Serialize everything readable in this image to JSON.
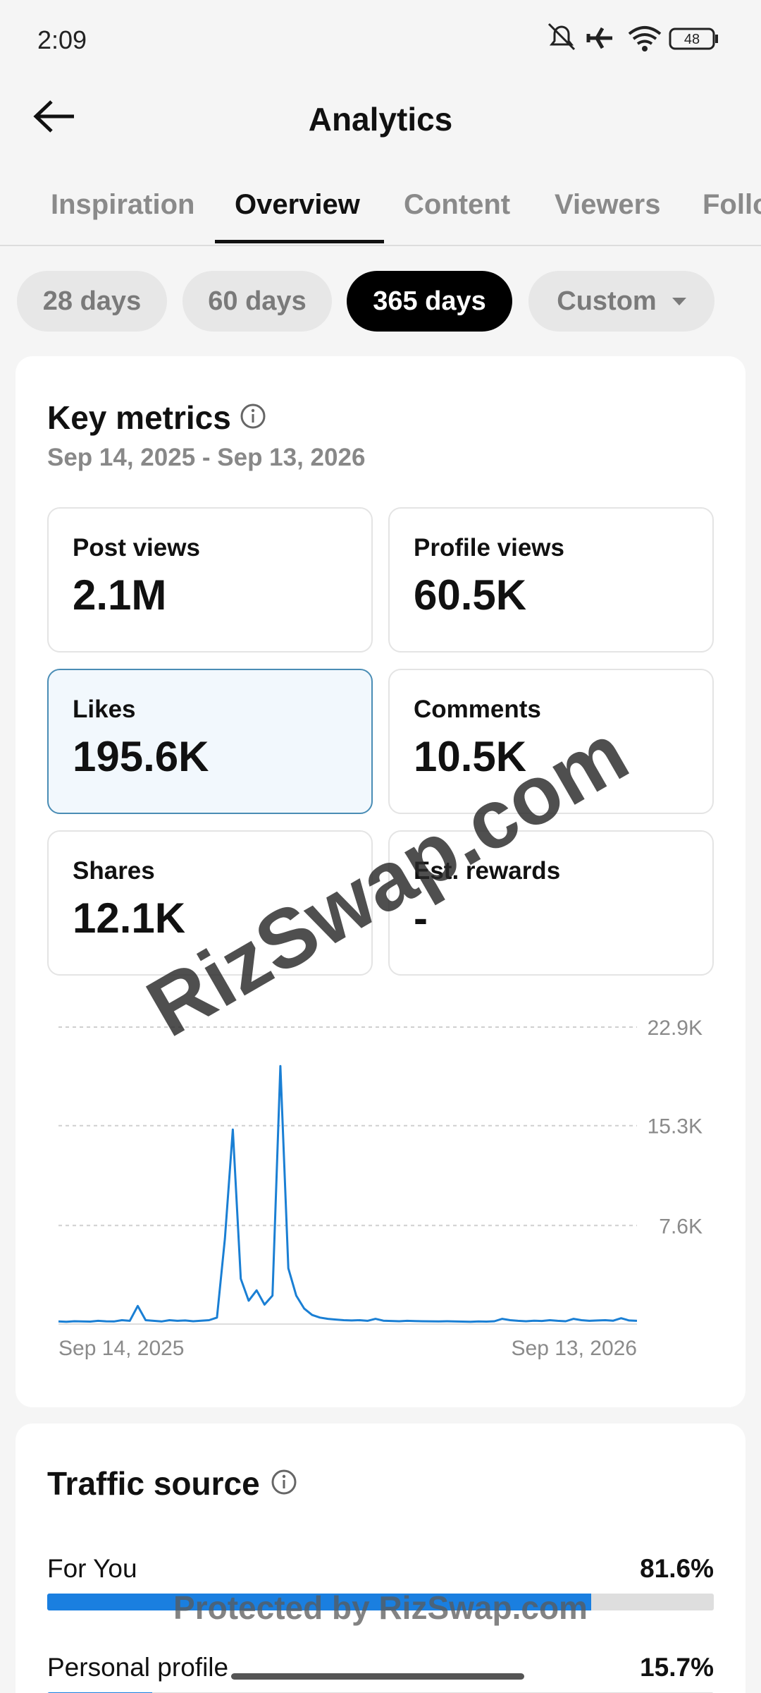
{
  "status_bar": {
    "time": "2:09",
    "battery": "48"
  },
  "header": {
    "title": "Analytics"
  },
  "tabs": [
    "Inspiration",
    "Overview",
    "Content",
    "Viewers",
    "Followers"
  ],
  "ranges": [
    "28 days",
    "60 days",
    "365 days",
    "Custom"
  ],
  "key_metrics": {
    "title": "Key metrics",
    "date_range": "Sep 14, 2025 - Sep 13, 2026",
    "metrics": [
      {
        "label": "Post views",
        "value": "2.1M"
      },
      {
        "label": "Profile views",
        "value": "60.5K"
      },
      {
        "label": "Likes",
        "value": "195.6K"
      },
      {
        "label": "Comments",
        "value": "10.5K"
      },
      {
        "label": "Shares",
        "value": "12.1K"
      },
      {
        "label": "Est. rewards",
        "value": "-"
      }
    ]
  },
  "chart_data": {
    "type": "line",
    "categories": [
      "Sep 14, 2025",
      null,
      null,
      null,
      null,
      null,
      null,
      null,
      null,
      null,
      null,
      null,
      null,
      null,
      null,
      null,
      null,
      null,
      null,
      null,
      null,
      null,
      null,
      null,
      null,
      null,
      null,
      null,
      null,
      null,
      null,
      null,
      null,
      null,
      null,
      null,
      null,
      null,
      null,
      null,
      null,
      null,
      null,
      null,
      null,
      null,
      null,
      null,
      null,
      null,
      null,
      null,
      null,
      null,
      null,
      null,
      null,
      null,
      null,
      null,
      null,
      null,
      null,
      null,
      null,
      null,
      null,
      null,
      null,
      null,
      null,
      null,
      null,
      "Sep 13, 2026"
    ],
    "values": [
      200,
      180,
      220,
      200,
      190,
      250,
      210,
      200,
      300,
      250,
      1400,
      300,
      250,
      200,
      300,
      250,
      280,
      220,
      260,
      300,
      500,
      6600,
      15000,
      3500,
      1800,
      2600,
      1500,
      2200,
      19900,
      4300,
      2200,
      1200,
      700,
      500,
      400,
      350,
      300,
      280,
      300,
      250,
      400,
      260,
      240,
      220,
      250,
      230,
      220,
      210,
      200,
      220,
      200,
      190,
      180,
      200,
      190,
      220,
      400,
      300,
      250,
      220,
      260,
      240,
      300,
      250,
      220,
      400,
      300,
      250,
      280,
      300,
      260,
      450,
      280,
      250
    ],
    "color": "#1a7fd4",
    "ylim": [
      0,
      22900
    ],
    "yticks": [
      {
        "value": 7600,
        "label": "7.6K"
      },
      {
        "value": 15300,
        "label": "15.3K"
      },
      {
        "value": 22900,
        "label": "22.9K"
      }
    ],
    "grid": true
  },
  "traffic_source": {
    "title": "Traffic source",
    "categories": [
      "For You",
      "Personal profile"
    ],
    "values": [
      81.6,
      15.7
    ],
    "value_labels": [
      "81.6%",
      "15.7%"
    ]
  },
  "watermarks": [
    "RizSwap.com",
    "Protected by RizSwap.com"
  ]
}
